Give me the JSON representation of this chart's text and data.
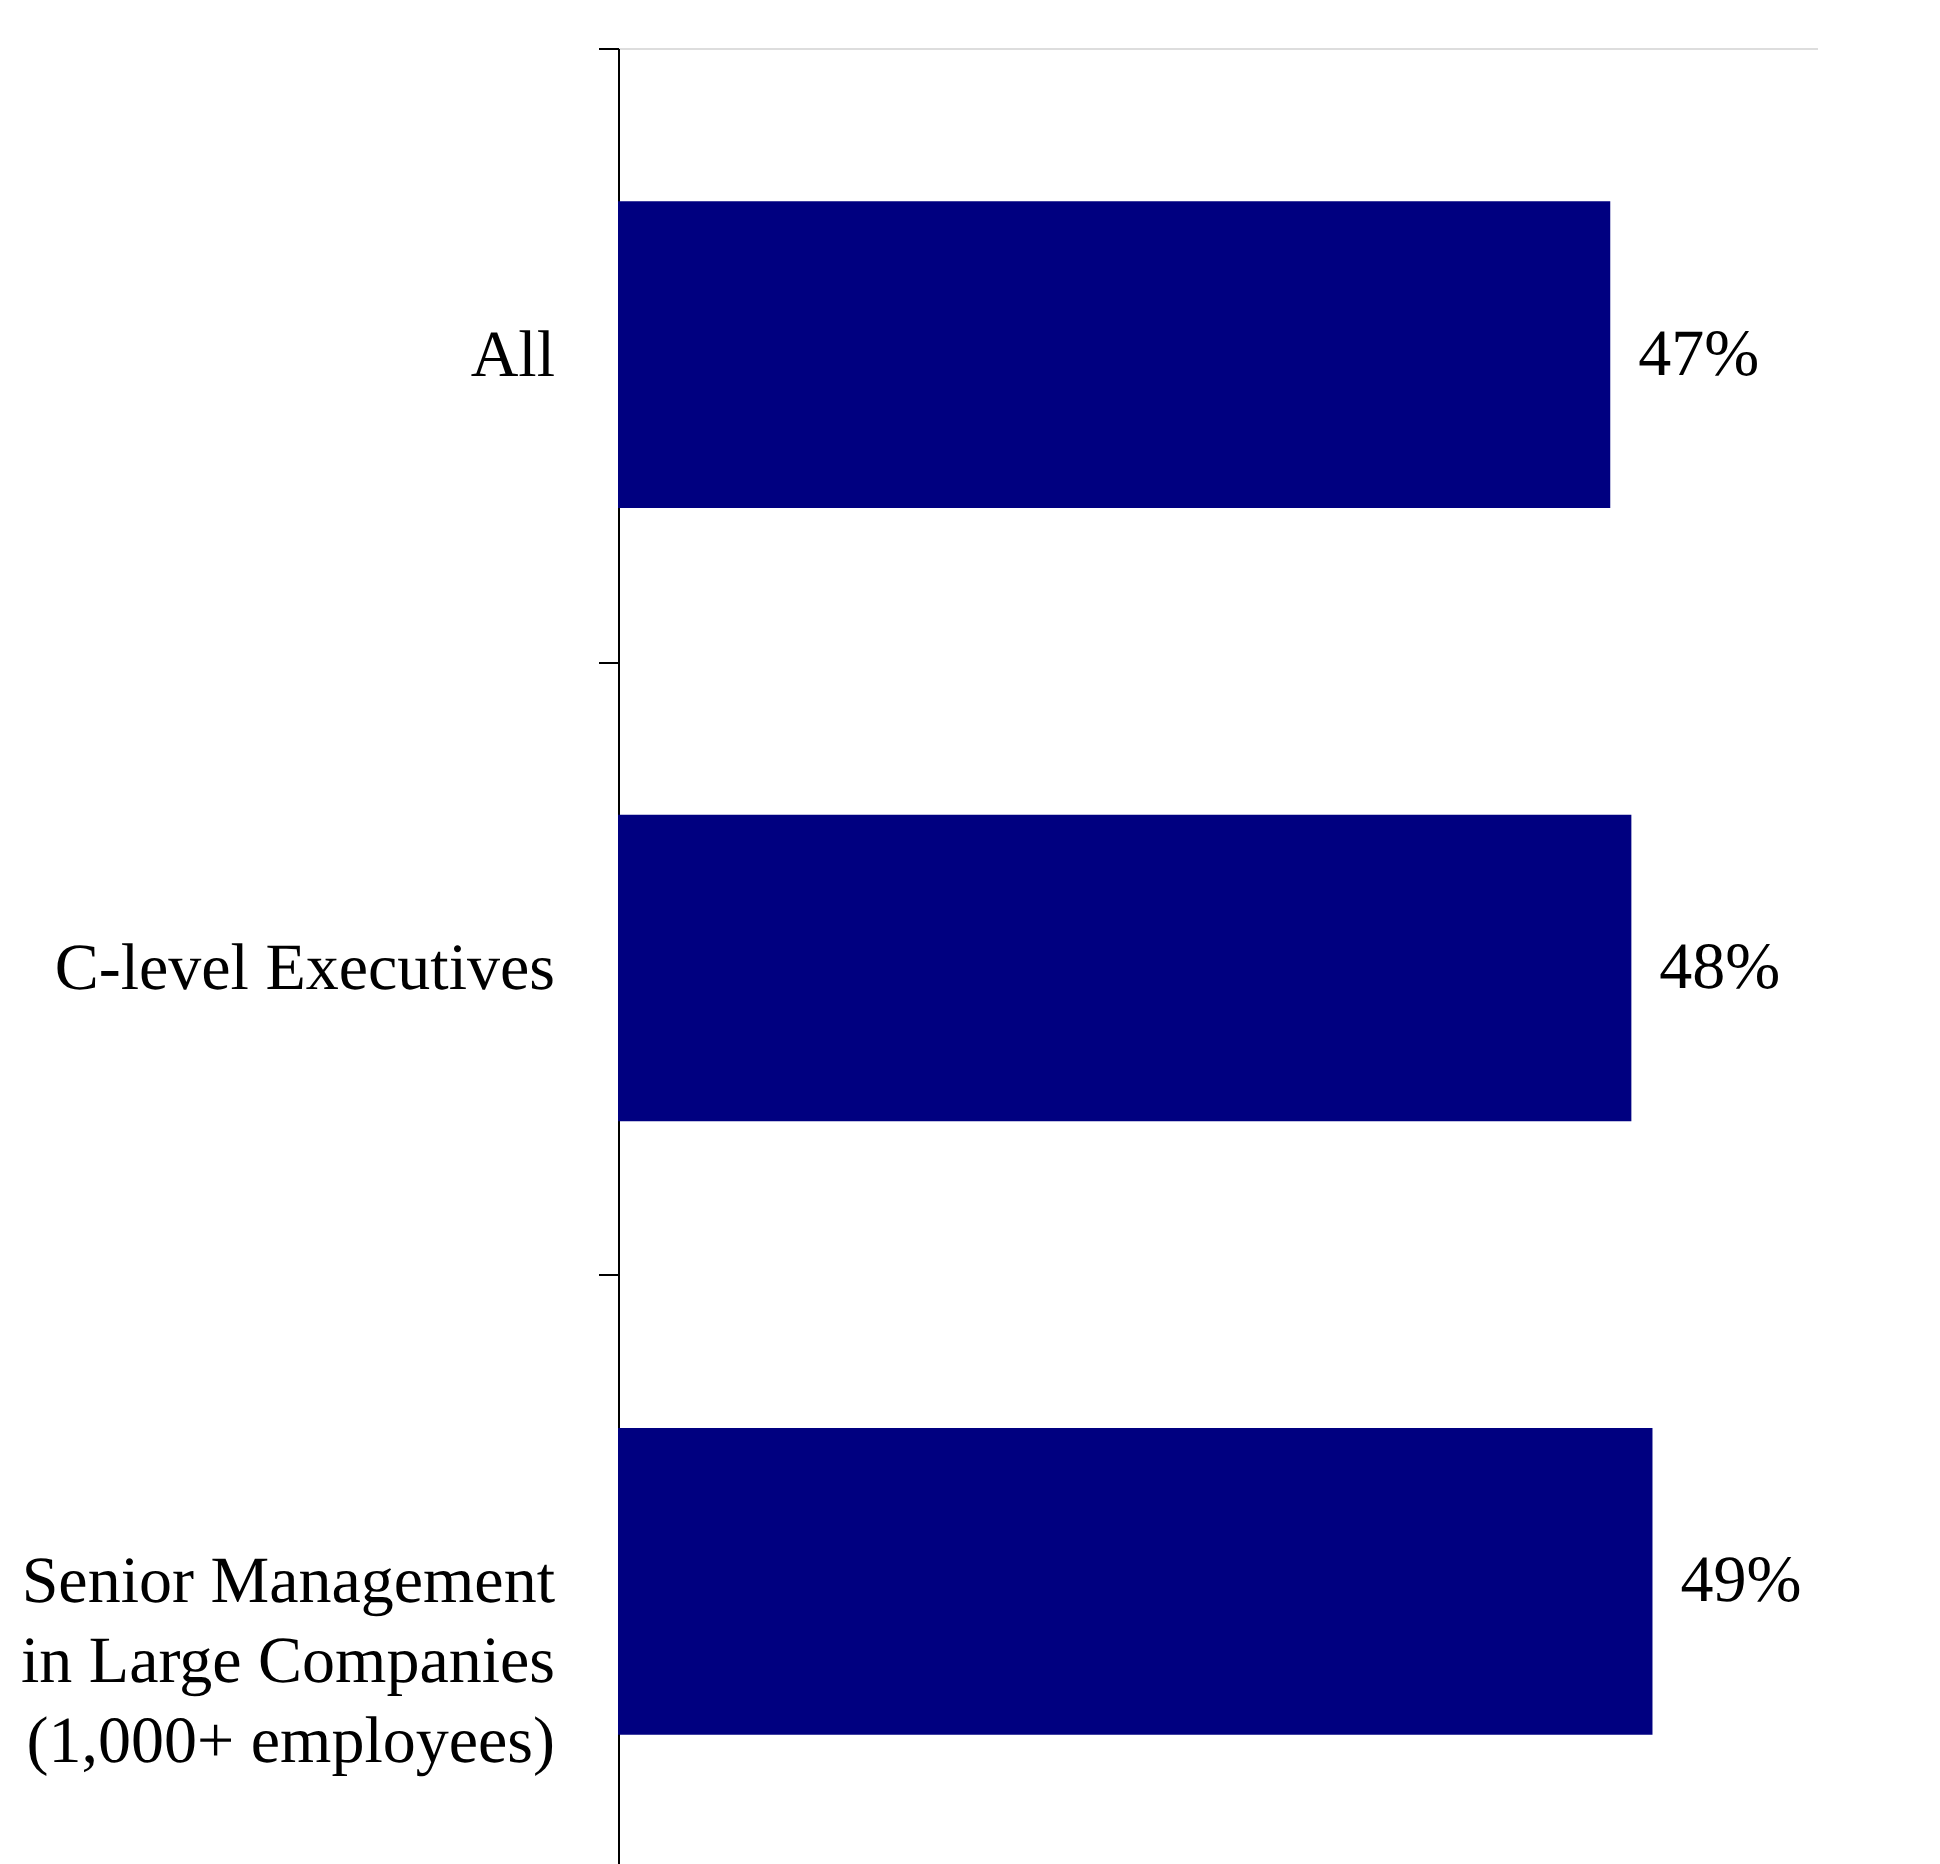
{
  "chart_data": {
    "type": "bar",
    "orientation": "horizontal",
    "categories": [
      "All",
      "C-level Executives",
      "Senior Management in Large Companies (1,000+ employees)"
    ],
    "values": [
      47,
      48,
      49
    ],
    "color": "#000080",
    "value_labels": [
      "47%",
      "48%",
      "49%"
    ]
  }
}
